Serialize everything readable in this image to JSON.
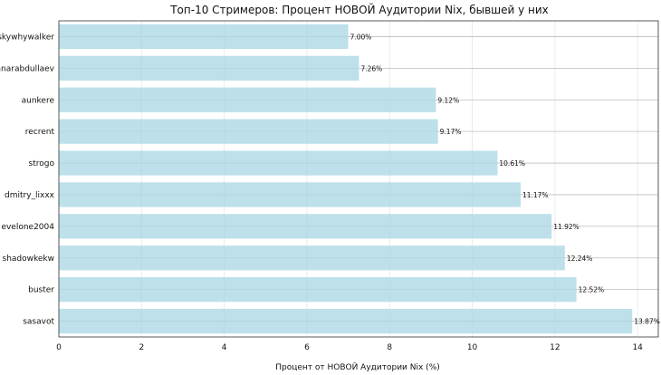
{
  "chart_data": {
    "type": "bar",
    "orientation": "horizontal",
    "title": "Топ-10 Стримеров: Процент НОВОЙ Аудитории Nix, бывшей у них",
    "xlabel": "Процент от НОВОЙ Аудитории Nix (%)",
    "ylabel": "",
    "xlim": [
      0,
      14.5
    ],
    "xticks": [
      0,
      2,
      4,
      6,
      8,
      10,
      12,
      14
    ],
    "grid": true,
    "bar_color": "#add8e6",
    "categories": [
      "skywhywalker",
      "anarabdullaev",
      "aunkere",
      "recrent",
      "strogo",
      "dmitry_lixxx",
      "evelone2004",
      "shadowkekw",
      "buster",
      "sasavot"
    ],
    "values": [
      7.0,
      7.26,
      9.12,
      9.17,
      10.61,
      11.17,
      11.92,
      12.24,
      12.52,
      13.87
    ],
    "value_labels": [
      "7.00%",
      "7.26%",
      "9.12%",
      "9.17%",
      "10.61%",
      "11.17%",
      "11.92%",
      "12.24%",
      "12.52%",
      "13.87%"
    ]
  }
}
